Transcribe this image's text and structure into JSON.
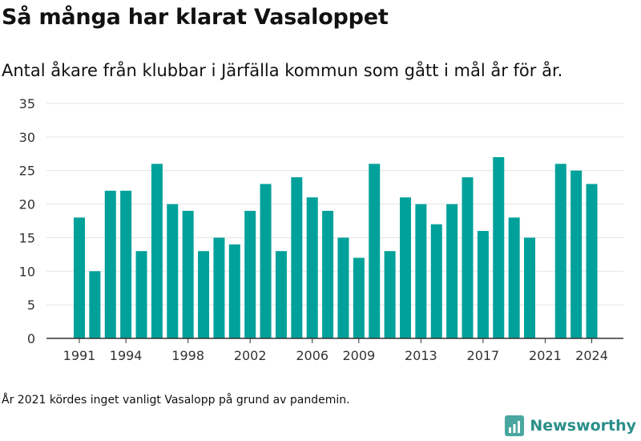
{
  "header": {
    "title": "Så många har klarat Vasaloppet",
    "subtitle": "Antal åkare från klubbar i Järfälla kommun som gått i mål år för år."
  },
  "footnote": "År 2021 kördes inget vanligt Vasalopp på grund av pandemin.",
  "brand": {
    "name": "Newsworthy",
    "icon": "bar-chart-logo-icon"
  },
  "colors": {
    "bar": "#00a19a",
    "grid": "#e3e3e3",
    "axis": "#333333",
    "brand": "#2a8f89"
  },
  "chart_data": {
    "type": "bar",
    "title": "",
    "xlabel": "",
    "ylabel": "",
    "x": [
      1991,
      1992,
      1993,
      1994,
      1995,
      1996,
      1997,
      1998,
      1999,
      2000,
      2001,
      2002,
      2003,
      2004,
      2005,
      2006,
      2007,
      2008,
      2009,
      2010,
      2011,
      2012,
      2013,
      2014,
      2015,
      2016,
      2017,
      2018,
      2019,
      2020,
      2021,
      2022,
      2023,
      2024
    ],
    "values": [
      18,
      10,
      22,
      22,
      13,
      26,
      20,
      19,
      13,
      15,
      14,
      19,
      23,
      13,
      24,
      21,
      19,
      15,
      12,
      26,
      13,
      21,
      20,
      17,
      20,
      24,
      16,
      27,
      18,
      15,
      null,
      26,
      25,
      23
    ],
    "ylim": [
      0,
      35
    ],
    "y_ticks": [
      0,
      5,
      10,
      15,
      20,
      25,
      30,
      35
    ],
    "x_ticks": [
      1991,
      1994,
      1998,
      2002,
      2006,
      2009,
      2013,
      2017,
      2021,
      2024
    ],
    "grid": true,
    "legend": "none"
  }
}
